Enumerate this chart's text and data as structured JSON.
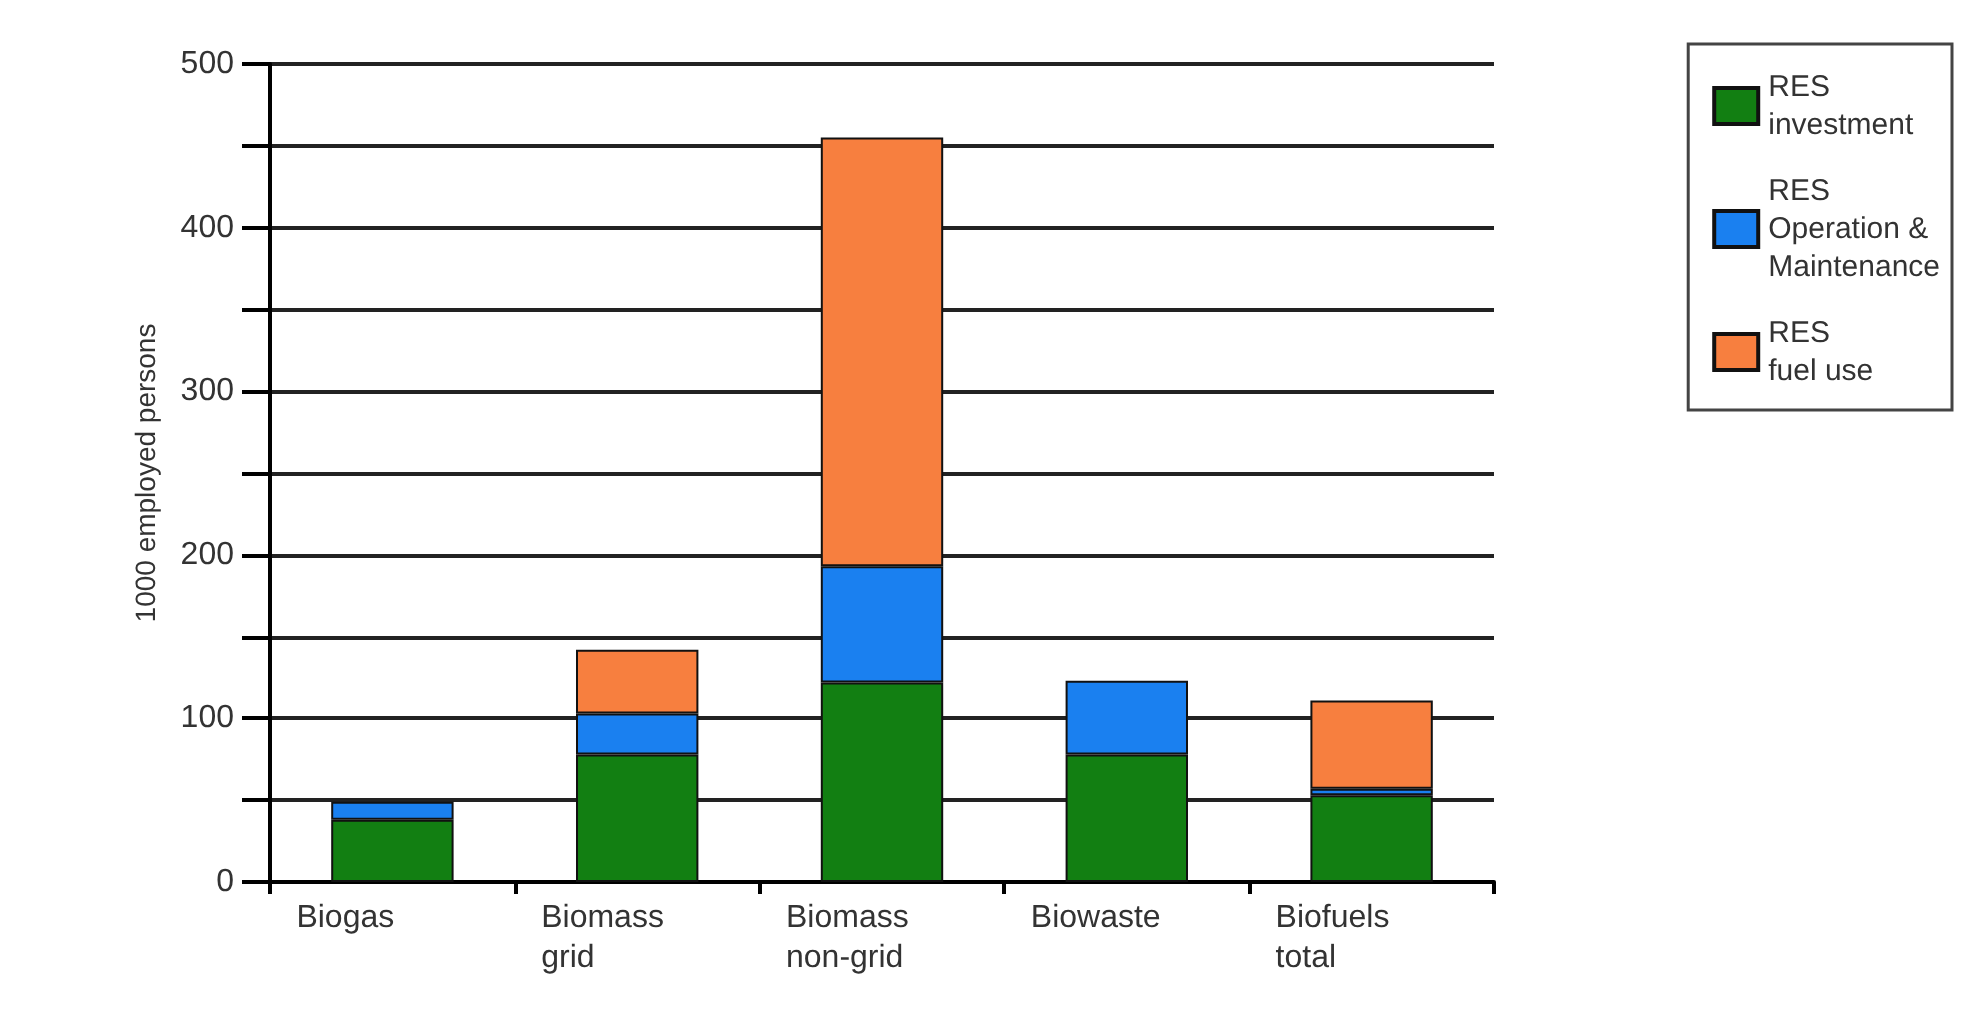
{
  "chart_data": {
    "type": "bar",
    "stacked": true,
    "ylabel": "1000 employed persons",
    "categories": [
      "Biogas",
      "Biomass\ngrid",
      "Biomass\nnon-grid",
      "Biowaste",
      "Biofuels\ntotal"
    ],
    "series": [
      {
        "name": "RES\ninvestment",
        "color": "#127f12",
        "values": [
          38,
          78,
          122,
          78,
          53
        ]
      },
      {
        "name": "RES\nOperation &\nMaintenance",
        "color": "#1a80f0",
        "values": [
          11,
          25,
          71,
          45,
          4
        ]
      },
      {
        "name": "RES\nfuel use",
        "color": "#f77f3f",
        "values": [
          null,
          39,
          262,
          null,
          54
        ]
      }
    ],
    "ylim": [
      0,
      500
    ],
    "yticks": [
      0,
      {
        "value": 50,
        "label": null
      },
      100,
      {
        "value": 150,
        "label": null
      },
      200,
      {
        "value": 250,
        "label": null
      },
      300,
      {
        "value": 350,
        "label": null
      },
      400,
      {
        "value": 450,
        "label": null
      },
      500
    ],
    "grid": true,
    "legend": "top right"
  }
}
